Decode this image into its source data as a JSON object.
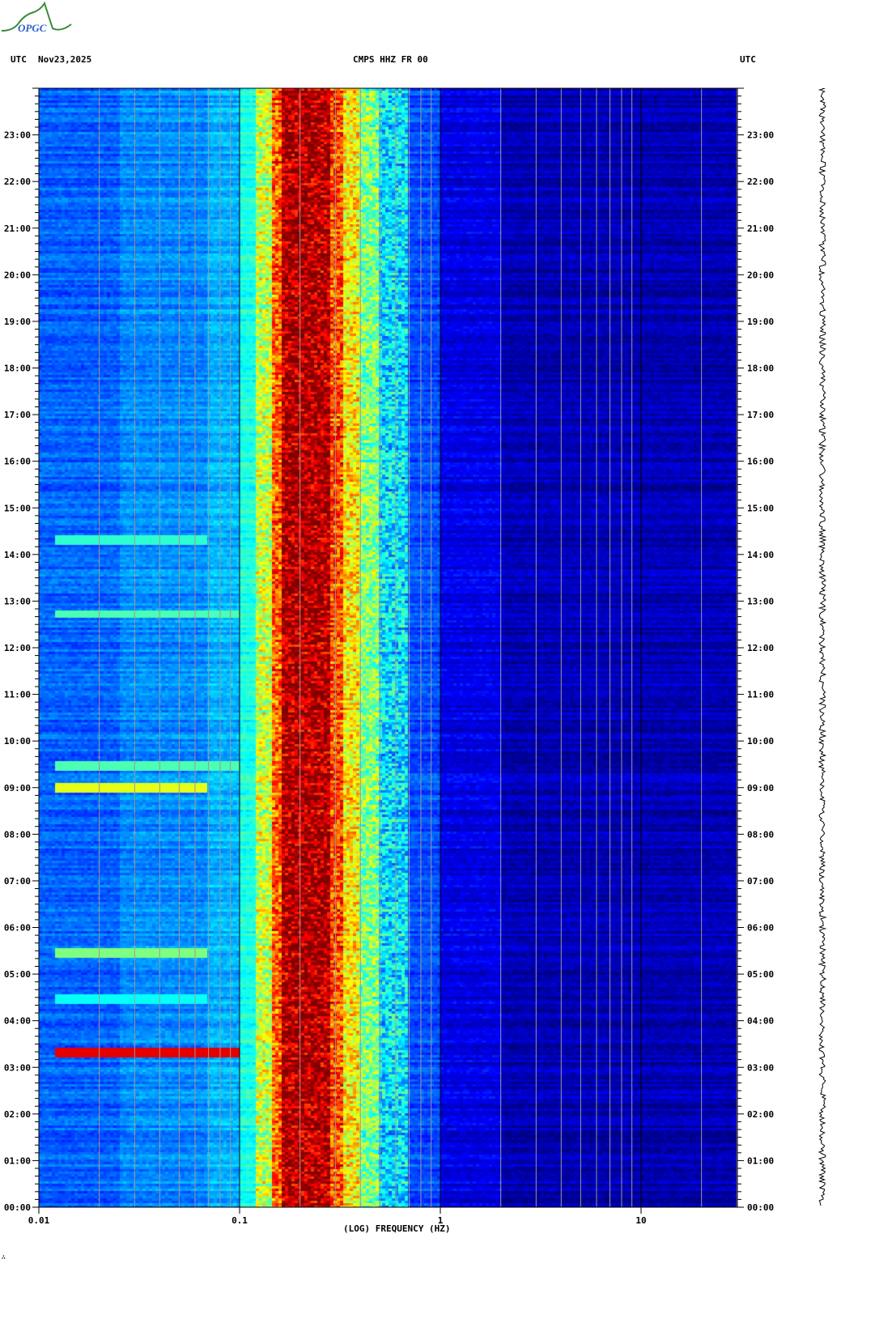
{
  "header": {
    "logo_text": "OPGC",
    "left_label": "UTC",
    "date": "Nov23,2025",
    "station": "CMPS HHZ FR 00",
    "right_label": "UTC"
  },
  "footer": {
    "mark": "∴"
  },
  "chart_data": {
    "type": "heatmap",
    "title": "CMPS HHZ FR 00",
    "xlabel": "(LOG) FREQUENCY (HZ)",
    "ylabel": "UTC",
    "x_scale": "log",
    "xlim": [
      0.01,
      30
    ],
    "x_ticks": [
      "0.01",
      "0.1",
      "1",
      "10"
    ],
    "ylim": [
      "00:00",
      "24:00"
    ],
    "y_ticks": [
      "00:00",
      "01:00",
      "02:00",
      "03:00",
      "04:00",
      "05:00",
      "06:00",
      "07:00",
      "08:00",
      "09:00",
      "10:00",
      "11:00",
      "12:00",
      "13:00",
      "14:00",
      "15:00",
      "16:00",
      "17:00",
      "18:00",
      "19:00",
      "20:00",
      "21:00",
      "22:00",
      "23:00"
    ],
    "colormap": "jet",
    "spectral_profile": [
      {
        "f_min": 0.01,
        "f_max": 0.025,
        "level": 0.22
      },
      {
        "f_min": 0.025,
        "f_max": 0.07,
        "level": 0.26
      },
      {
        "f_min": 0.07,
        "f_max": 0.1,
        "level": 0.3
      },
      {
        "f_min": 0.1,
        "f_max": 0.12,
        "level": 0.4
      },
      {
        "f_min": 0.12,
        "f_max": 0.145,
        "level": 0.57
      },
      {
        "f_min": 0.145,
        "f_max": 0.16,
        "level": 0.78
      },
      {
        "f_min": 0.16,
        "f_max": 0.28,
        "level": 0.95
      },
      {
        "f_min": 0.28,
        "f_max": 0.33,
        "level": 0.8
      },
      {
        "f_min": 0.33,
        "f_max": 0.4,
        "level": 0.64
      },
      {
        "f_min": 0.4,
        "f_max": 0.5,
        "level": 0.5
      },
      {
        "f_min": 0.5,
        "f_max": 0.7,
        "level": 0.35
      },
      {
        "f_min": 0.7,
        "f_max": 1.0,
        "level": 0.2
      },
      {
        "f_min": 1.0,
        "f_max": 2.0,
        "level": 0.1
      },
      {
        "f_min": 2.0,
        "f_max": 30,
        "level": 0.05
      }
    ],
    "events": [
      {
        "time": "03:20",
        "f_max": 0.1,
        "level": 0.9
      },
      {
        "time": "04:30",
        "f_max": 0.07,
        "level": 0.38
      },
      {
        "time": "05:30",
        "f_max": 0.07,
        "level": 0.5
      },
      {
        "time": "09:00",
        "f_max": 0.07,
        "level": 0.6
      },
      {
        "time": "09:30",
        "f_max": 0.1,
        "level": 0.45
      },
      {
        "time": "12:45",
        "f_max": 0.1,
        "level": 0.45
      },
      {
        "time": "14:20",
        "f_max": 0.07,
        "level": 0.42
      }
    ]
  }
}
